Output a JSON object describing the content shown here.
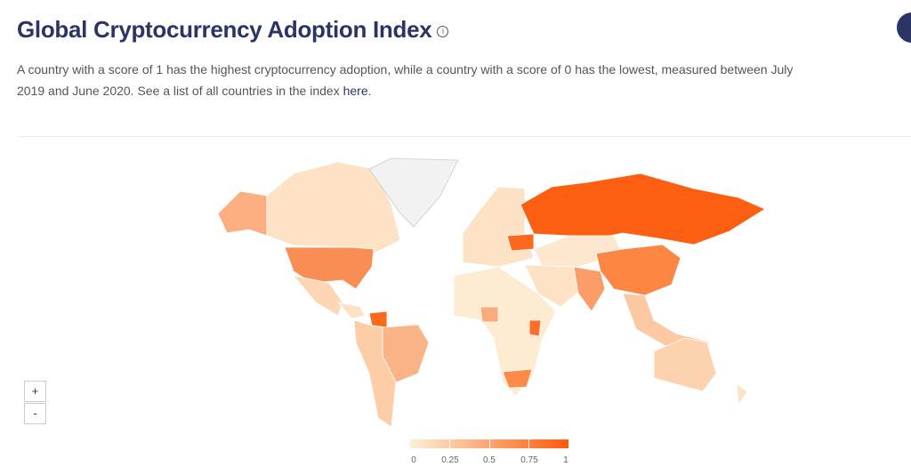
{
  "title": "Global Cryptocurrency Adoption Index",
  "info_icon": "i",
  "description": "A country with a score of 1 has the highest cryptocurrency adoption, while a country with a score of 0 has the lowest, measured between July 2019 and June 2020. See a list of all countries in the index ",
  "link_text": "here",
  "link_suffix": ".",
  "zoom_in": "+",
  "zoom_out": "-",
  "legend": {
    "ticks": [
      "0",
      "0.25",
      "0.5",
      "0.75",
      "1"
    ],
    "min_color": "#fdf0d8",
    "max_color": "#fd5a0a"
  },
  "colors": {
    "title": "#2a3566",
    "nodata": "#f2f2f2"
  }
}
